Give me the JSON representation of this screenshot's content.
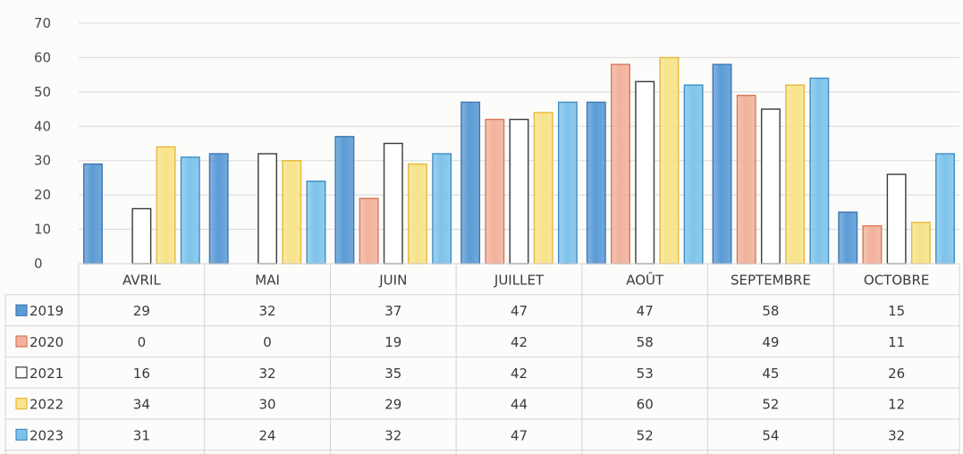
{
  "chart_data": {
    "type": "bar",
    "categories": [
      "AVRIL",
      "MAI",
      "JUIN",
      "JUILLET",
      "AOÛT",
      "SEPTEMBRE",
      "OCTOBRE"
    ],
    "series": [
      {
        "name": "2019",
        "values": [
          29,
          32,
          37,
          47,
          47,
          58,
          15
        ],
        "color": "#5b9bd5",
        "stroke": "#3e76b3"
      },
      {
        "name": "2020",
        "values": [
          0,
          0,
          19,
          42,
          58,
          49,
          11
        ],
        "color": "#f2b29b",
        "stroke": "#d9785a"
      },
      {
        "name": "2021",
        "values": [
          16,
          32,
          35,
          42,
          53,
          45,
          26
        ],
        "color": "#ffffff",
        "stroke": "#3a3a3a"
      },
      {
        "name": "2022",
        "values": [
          34,
          30,
          29,
          44,
          60,
          52,
          12
        ],
        "color": "#f7e38a",
        "stroke": "#e8b83a"
      },
      {
        "name": "2023",
        "values": [
          31,
          24,
          32,
          47,
          52,
          54,
          32
        ],
        "color": "#7ec3ea",
        "stroke": "#3e8fc4"
      }
    ],
    "yticks": [
      0,
      10,
      20,
      30,
      40,
      50,
      60,
      70
    ],
    "ylim": [
      0,
      70
    ],
    "grid": true,
    "data_table": true,
    "legend_placement": "data-table-left"
  }
}
